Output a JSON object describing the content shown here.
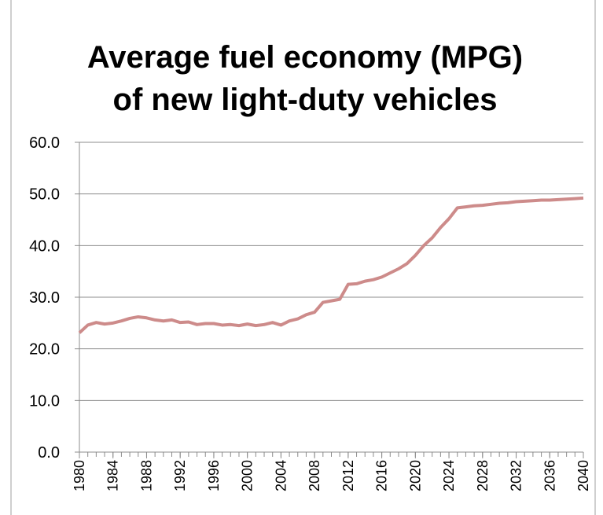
{
  "chart_data": {
    "type": "line",
    "title": [
      "Average fuel economy (MPG)",
      "of new light-duty vehicles"
    ],
    "x": [
      1980,
      1981,
      1982,
      1983,
      1984,
      1985,
      1986,
      1987,
      1988,
      1989,
      1990,
      1991,
      1992,
      1993,
      1994,
      1995,
      1996,
      1997,
      1998,
      1999,
      2000,
      2001,
      2002,
      2003,
      2004,
      2005,
      2006,
      2007,
      2008,
      2009,
      2010,
      2011,
      2012,
      2013,
      2014,
      2015,
      2016,
      2017,
      2018,
      2019,
      2020,
      2021,
      2022,
      2023,
      2024,
      2025,
      2026,
      2027,
      2028,
      2029,
      2030,
      2031,
      2032,
      2033,
      2034,
      2035,
      2036,
      2037,
      2038,
      2039,
      2040
    ],
    "series": [
      {
        "color": "#cd8b8a",
        "values": [
          23.1,
          24.6,
          25.1,
          24.8,
          25.0,
          25.4,
          25.9,
          26.2,
          26.0,
          25.6,
          25.4,
          25.6,
          25.1,
          25.2,
          24.7,
          24.9,
          24.9,
          24.6,
          24.7,
          24.5,
          24.8,
          24.5,
          24.7,
          25.1,
          24.6,
          25.4,
          25.8,
          26.6,
          27.1,
          29.0,
          29.3,
          29.6,
          32.5,
          32.6,
          33.1,
          33.4,
          33.9,
          34.7,
          35.5,
          36.5,
          38.1,
          40.0,
          41.5,
          43.5,
          45.2,
          47.3,
          47.5,
          47.7,
          47.8,
          48.0,
          48.2,
          48.3,
          48.5,
          48.6,
          48.7,
          48.8,
          48.8,
          48.9,
          49.0,
          49.1,
          49.2
        ]
      }
    ],
    "xlim": [
      1980,
      2040
    ],
    "xticks": [
      1980,
      1984,
      1988,
      1992,
      1996,
      2000,
      2004,
      2008,
      2012,
      2016,
      2020,
      2024,
      2028,
      2032,
      2036,
      2040
    ],
    "ylim": [
      0,
      60
    ],
    "yticks": [
      {
        "value": 0,
        "label": "0.0"
      },
      {
        "value": 10,
        "label": "10.0"
      },
      {
        "value": 20,
        "label": "20.0"
      },
      {
        "value": 30,
        "label": "30.0"
      },
      {
        "value": 40,
        "label": "40.0"
      },
      {
        "value": 50,
        "label": "50.0"
      },
      {
        "value": 60,
        "label": "60.0"
      }
    ],
    "grid": true
  }
}
